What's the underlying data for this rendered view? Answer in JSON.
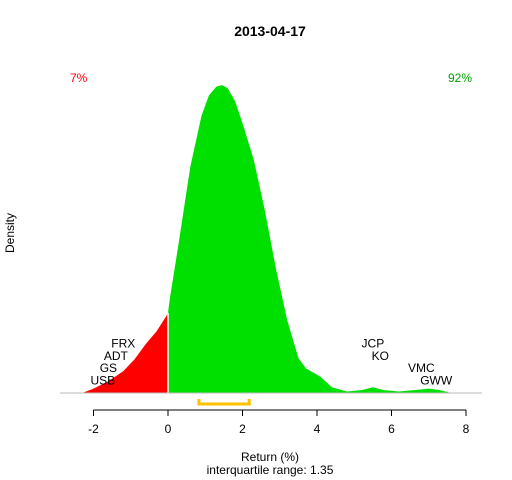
{
  "chart_data": {
    "type": "area",
    "title": "2013-04-17",
    "xlabel": "Return (%)",
    "ylabel": "Density",
    "subtitle": "interquartile range: 1.35",
    "xlim": [
      -2.9,
      8.0
    ],
    "ylim": [
      0,
      0.44
    ],
    "x_ticks": [
      -2,
      0,
      2,
      4,
      6,
      8
    ],
    "x_tick_labels": [
      "-2",
      "0",
      "2",
      "4",
      "6",
      "8"
    ],
    "grid": false,
    "split_at": 0,
    "left_pct_label": "7%",
    "right_pct_label": "92%",
    "left_color": "#ff0000",
    "right_color": "#00e000",
    "axis_color": "#000000",
    "baseline_color": "#bbbbbb",
    "iqr_color": "#ffc000",
    "iqr_range": [
      0.83,
      2.18
    ],
    "density": {
      "x": [
        -2.3,
        -2.0,
        -1.6,
        -1.2,
        -0.9,
        -0.6,
        -0.3,
        -0.05,
        0.0,
        0.05,
        0.3,
        0.6,
        0.9,
        1.1,
        1.3,
        1.45,
        1.6,
        1.8,
        2.0,
        2.3,
        2.6,
        2.9,
        3.2,
        3.5,
        3.7,
        3.9,
        4.1,
        4.4,
        4.8,
        5.2,
        5.5,
        5.8,
        6.2,
        6.6,
        7.0,
        7.3,
        7.6
      ],
      "y": [
        0.0,
        0.006,
        0.016,
        0.03,
        0.046,
        0.067,
        0.085,
        0.105,
        0.11,
        0.13,
        0.21,
        0.31,
        0.38,
        0.408,
        0.42,
        0.422,
        0.418,
        0.4,
        0.37,
        0.32,
        0.25,
        0.17,
        0.1,
        0.048,
        0.034,
        0.028,
        0.022,
        0.008,
        0.002,
        0.004,
        0.008,
        0.004,
        0.002,
        0.004,
        0.006,
        0.004,
        0.0
      ]
    },
    "stock_labels_left": [
      {
        "name": "FRX",
        "x": -1.2,
        "y": 0.068
      },
      {
        "name": "ADT",
        "x": -1.4,
        "y": 0.051
      },
      {
        "name": "GS",
        "x": -1.6,
        "y": 0.034
      },
      {
        "name": "USB",
        "x": -1.75,
        "y": 0.017
      }
    ],
    "stock_labels_right": [
      {
        "name": "JCP",
        "x": 5.5,
        "y": 0.068
      },
      {
        "name": "KO",
        "x": 5.7,
        "y": 0.051
      },
      {
        "name": "VMC",
        "x": 6.8,
        "y": 0.034
      },
      {
        "name": "GWW",
        "x": 7.2,
        "y": 0.017
      }
    ]
  }
}
